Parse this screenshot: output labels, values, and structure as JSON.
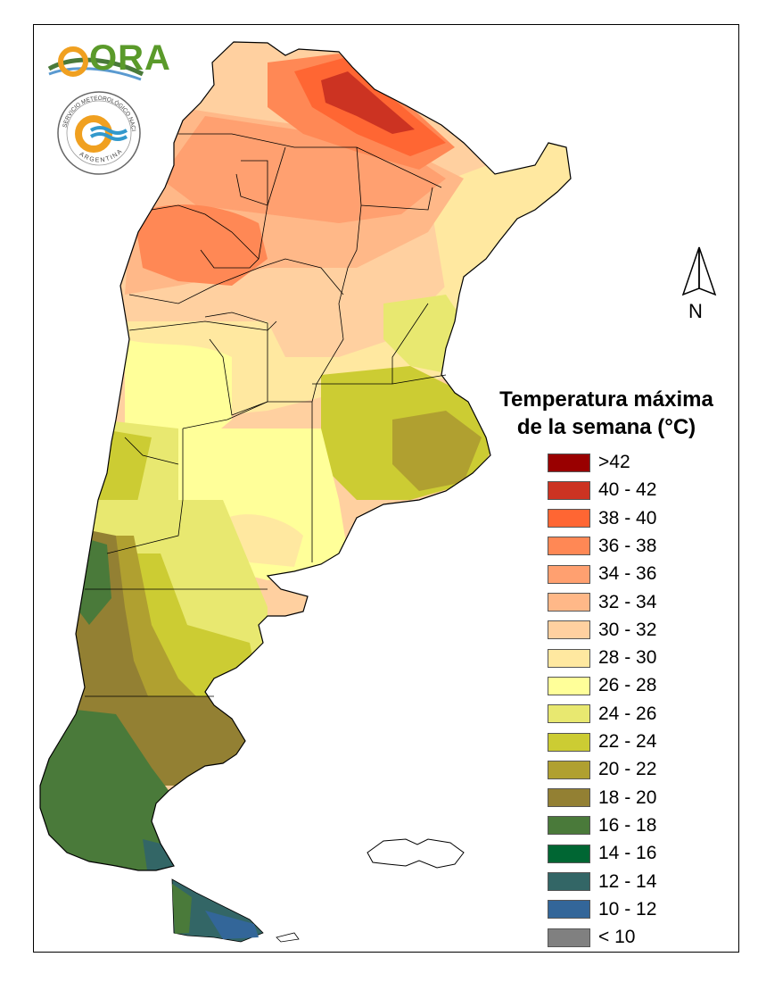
{
  "map": {
    "legend_title_line1": "Temperatura máxima",
    "legend_title_line2": "de la semana (°C)",
    "north_label": "N",
    "logo_text": "ORA",
    "seal_text": "SERVICIO METEOROLÓGICO NACIONAL",
    "seal_bottom_text": "ARGENTINA",
    "legend": [
      {
        "label": ">42",
        "color": "#990000"
      },
      {
        "label": "40 - 42",
        "color": "#cc3322"
      },
      {
        "label": "38 - 40",
        "color": "#ff6633"
      },
      {
        "label": "36 - 38",
        "color": "#ff8855"
      },
      {
        "label": "34 - 36",
        "color": "#ffa070"
      },
      {
        "label": "32 - 34",
        "color": "#ffb888"
      },
      {
        "label": "30 - 32",
        "color": "#ffd0a0"
      },
      {
        "label": "28 - 30",
        "color": "#ffe8a0"
      },
      {
        "label": "26 - 28",
        "color": "#ffff99"
      },
      {
        "label": "24 - 26",
        "color": "#e8e870"
      },
      {
        "label": "22 - 24",
        "color": "#cccc33"
      },
      {
        "label": "20 - 22",
        "color": "#b0a030"
      },
      {
        "label": "18 - 20",
        "color": "#938033"
      },
      {
        "label": "16 - 18",
        "color": "#4a7a3a"
      },
      {
        "label": "14 - 16",
        "color": "#006633"
      },
      {
        "label": "12 - 14",
        "color": "#336666"
      },
      {
        "label": "10 - 12",
        "color": "#336699"
      },
      {
        "label": "< 10",
        "color": "#808080"
      }
    ]
  }
}
